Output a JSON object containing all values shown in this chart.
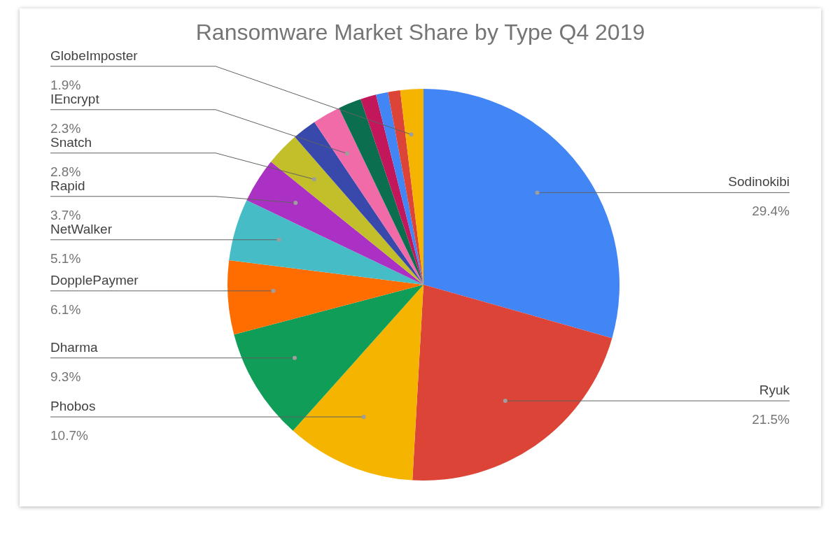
{
  "chart_data": {
    "type": "pie",
    "title": "Ransomware Market Share by Type Q4 2019",
    "categories": [
      "Sodinokibi",
      "Ryuk",
      "Phobos",
      "Dharma",
      "DopplePaymer",
      "NetWalker",
      "Rapid",
      "Snatch",
      null,
      "IEncrypt",
      null,
      null,
      null,
      null,
      "GlobeImposter"
    ],
    "values": [
      29.4,
      21.5,
      10.7,
      9.3,
      6.1,
      5.1,
      3.7,
      2.8,
      2.0,
      2.3,
      1.9,
      1.3,
      1.0,
      1.0,
      1.9
    ],
    "value_labels": [
      "29.4%",
      "21.5%",
      "10.7%",
      "9.3%",
      "6.1%",
      "5.1%",
      "3.7%",
      "2.8%",
      null,
      "2.3%",
      null,
      null,
      null,
      null,
      "1.9%"
    ],
    "colors": [
      "#4285f4",
      "#db4437",
      "#f4b400",
      "#0f9d58",
      "#ff6d01",
      "#46bdc6",
      "#ab30c4",
      "#c2bf2b",
      "#3949ab",
      "#f06ba8",
      "#0b6e4f",
      "#c2185b",
      "#4285f4",
      "#db4437",
      "#f4b400"
    ]
  }
}
